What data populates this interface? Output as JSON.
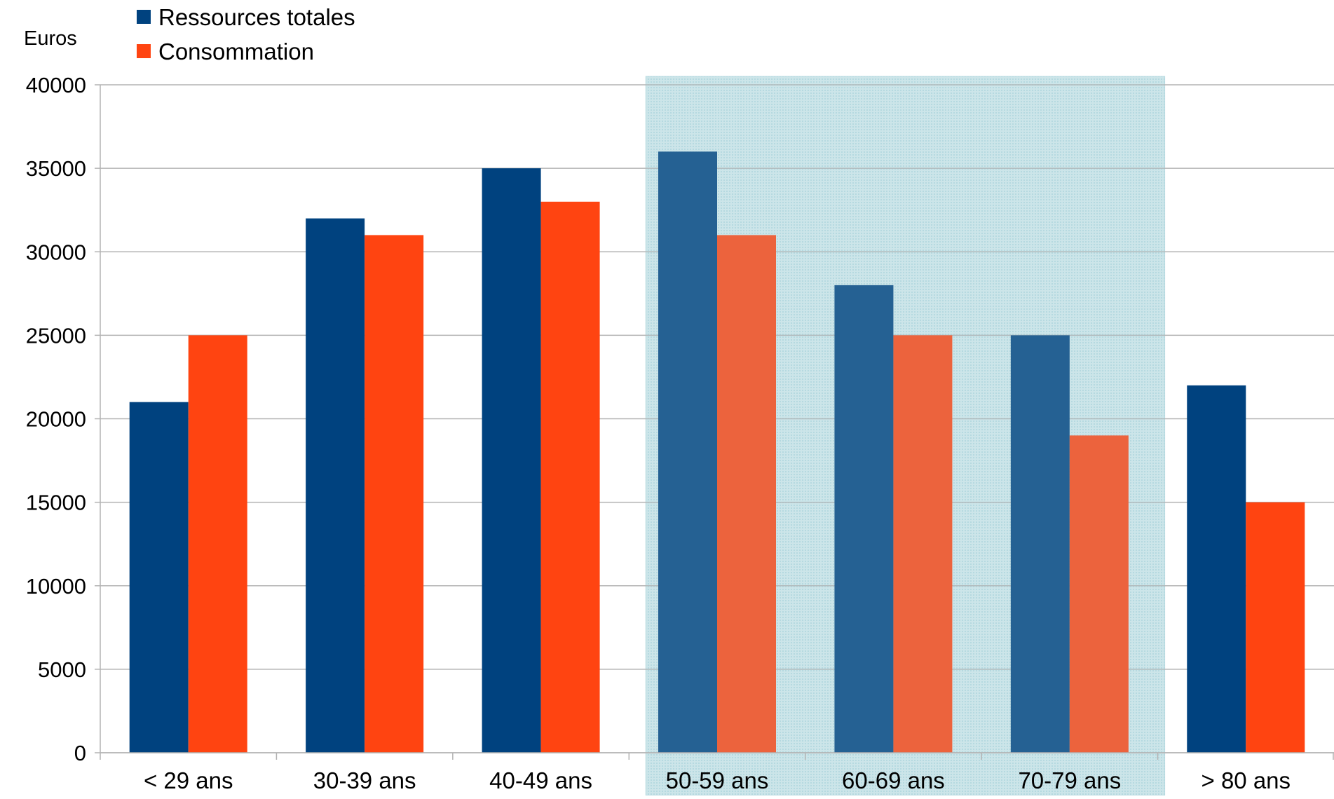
{
  "chart_data": {
    "type": "bar",
    "title": "",
    "xlabel": "",
    "ylabel": "Euros",
    "ylim": [
      0,
      40000
    ],
    "ytick_step": 5000,
    "grid": true,
    "legend_position": "top-left",
    "categories": [
      "< 29 ans",
      "30-39 ans",
      "40-49 ans",
      "50-59 ans",
      "60-69 ans",
      "70-79 ans",
      "> 80 ans"
    ],
    "series": [
      {
        "name": "Ressources totales",
        "color": "#00427f",
        "values": [
          21000,
          32000,
          35000,
          36000,
          28000,
          25000,
          22000
        ]
      },
      {
        "name": "Consommation",
        "color": "#ff4411",
        "values": [
          25000,
          31000,
          33000,
          31000,
          25000,
          19000,
          15000
        ]
      }
    ],
    "highlight": {
      "categories": [
        "50-59 ans",
        "60-69 ans",
        "70-79 ans"
      ],
      "color": "#a9d3dc"
    }
  }
}
